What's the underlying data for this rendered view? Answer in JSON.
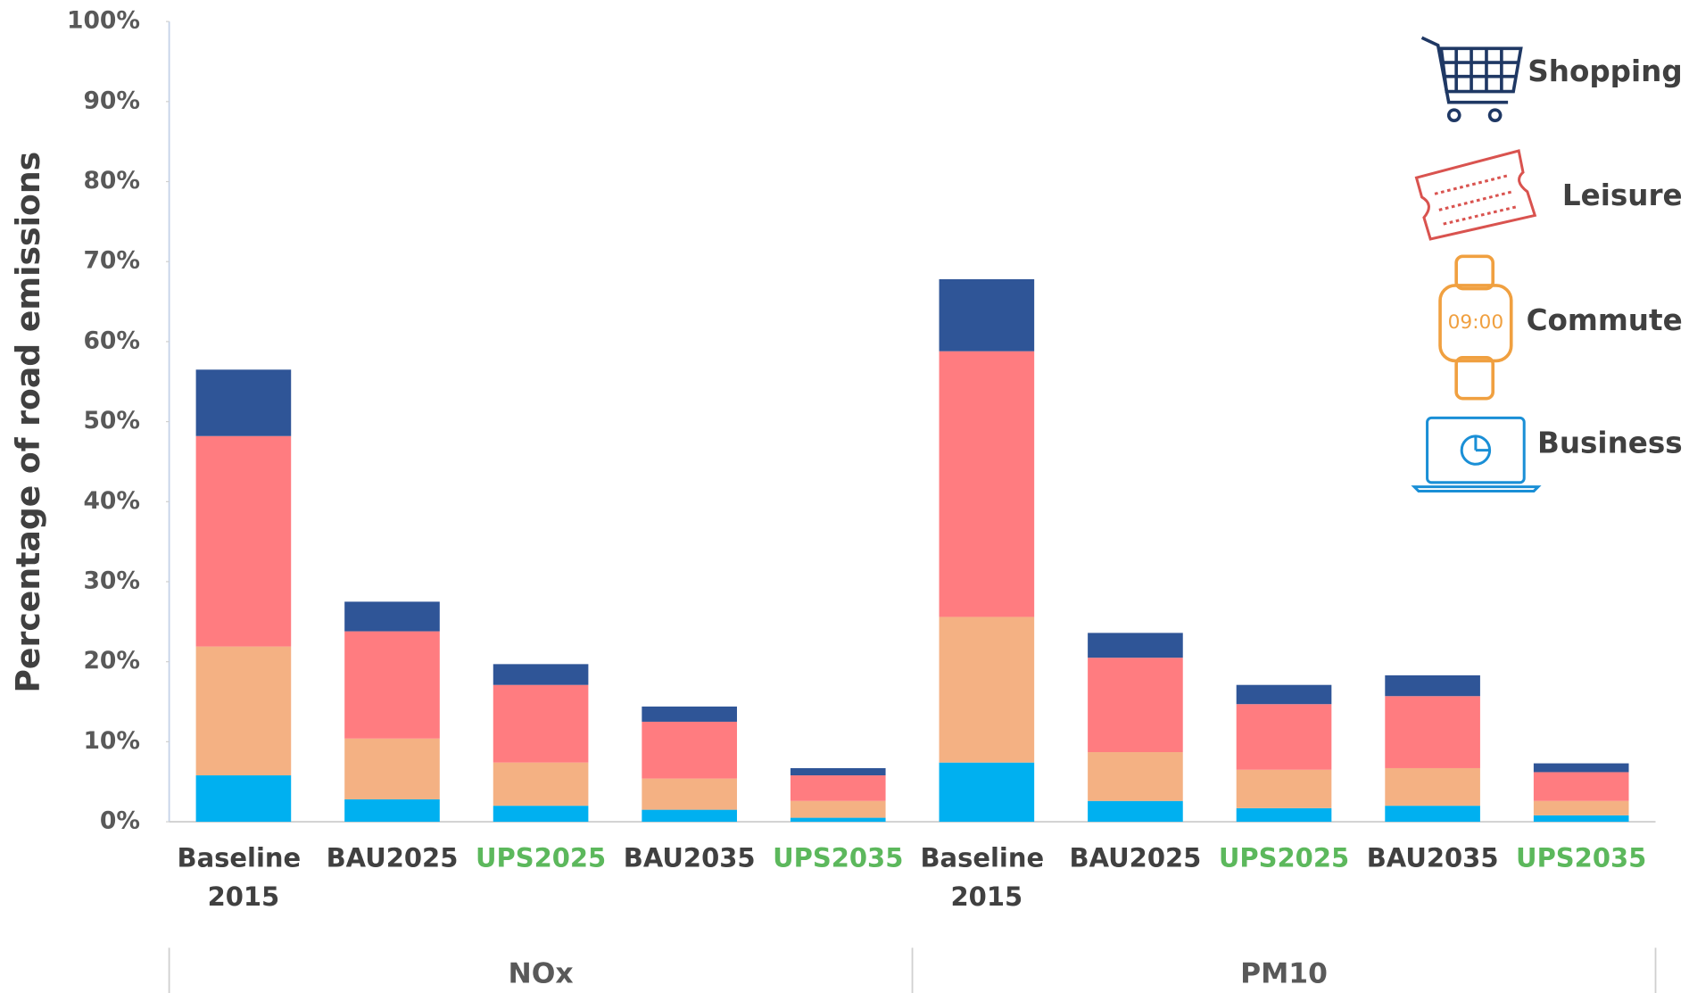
{
  "chart_data": {
    "type": "stacked_bar",
    "y_label": "Percentage of road emissions",
    "categories": [
      "Baseline 2015",
      "BAU2025",
      "UPS2025",
      "BAU2035",
      "UPS2035",
      "Baseline 2015",
      "BAU2025",
      "UPS2025",
      "BAU2035",
      "UPS2035"
    ],
    "category_label_colors": [
      "#404040",
      "#404040",
      "#5cb85c",
      "#404040",
      "#5cb85c",
      "#404040",
      "#404040",
      "#5cb85c",
      "#404040",
      "#5cb85c"
    ],
    "groups": [
      "NOx",
      "NOx",
      "NOx",
      "NOx",
      "NOx",
      "PM10",
      "PM10",
      "PM10",
      "PM10",
      "PM10"
    ],
    "series": [
      {
        "name": "Business",
        "color": "#00b0f0",
        "values": [
          5.8,
          2.8,
          2.0,
          1.5,
          0.5,
          7.4,
          2.6,
          1.7,
          2.0,
          0.8
        ]
      },
      {
        "name": "Commute",
        "color": "#f4b183",
        "values": [
          16.1,
          7.6,
          5.4,
          3.9,
          2.1,
          18.2,
          6.1,
          4.8,
          4.7,
          1.8
        ]
      },
      {
        "name": "Leisure",
        "color": "#ff7c80",
        "values": [
          26.3,
          13.4,
          9.7,
          7.1,
          3.2,
          33.2,
          11.8,
          8.2,
          9.0,
          3.6
        ]
      },
      {
        "name": "Shopping",
        "color": "#2f5597",
        "values": [
          8.3,
          3.7,
          2.6,
          1.9,
          0.9,
          9.0,
          3.1,
          2.4,
          2.6,
          1.1
        ]
      }
    ],
    "ylim": [
      0,
      100
    ],
    "yticks": [
      {
        "value": 0,
        "label": "0%"
      },
      {
        "value": 10,
        "label": "10%"
      },
      {
        "value": 20,
        "label": "20%"
      },
      {
        "value": 30,
        "label": "30%"
      },
      {
        "value": 40,
        "label": "40%"
      },
      {
        "value": 50,
        "label": "50%"
      },
      {
        "value": 60,
        "label": "60%"
      },
      {
        "value": 70,
        "label": "70%"
      },
      {
        "value": 80,
        "label": "80%"
      },
      {
        "value": 90,
        "label": "90%"
      },
      {
        "value": 100,
        "label": "100%"
      }
    ],
    "grid": false,
    "legend": "top-right"
  }
}
